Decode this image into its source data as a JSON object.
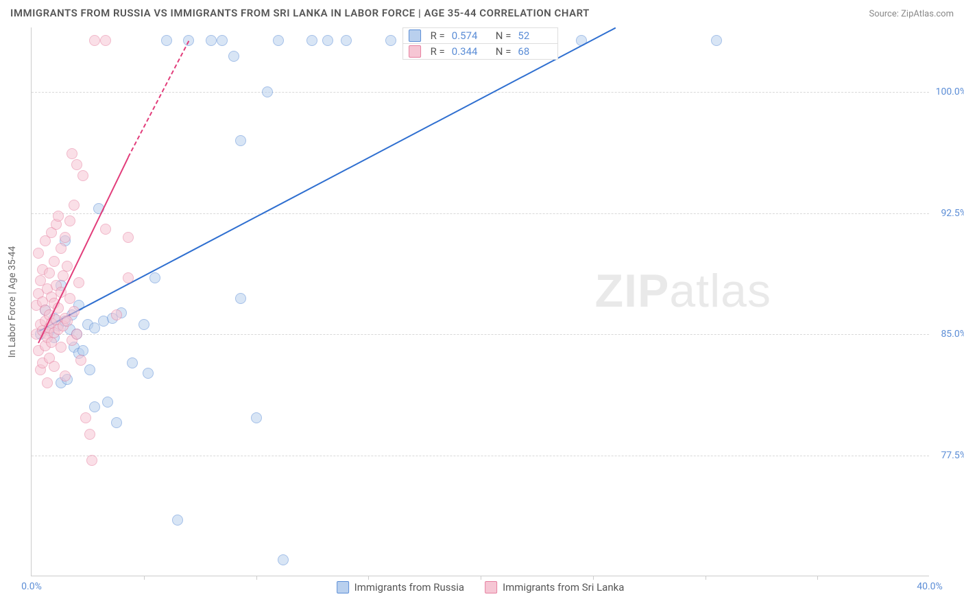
{
  "header": {
    "title": "IMMIGRANTS FROM RUSSIA VS IMMIGRANTS FROM SRI LANKA IN LABOR FORCE | AGE 35-44 CORRELATION CHART",
    "source": "Source: ZipAtlas.com"
  },
  "chart": {
    "type": "scatter",
    "ylabel": "In Labor Force | Age 35-44",
    "xlim": [
      0,
      40
    ],
    "ylim": [
      70,
      104
    ],
    "xticks": [
      {
        "v": 0,
        "label": "0.0%"
      },
      {
        "v": 40,
        "label": "40.0%"
      }
    ],
    "xtick_marks": [
      5,
      10,
      15,
      20,
      25,
      30,
      35
    ],
    "yticks": [
      {
        "v": 77.5,
        "label": "77.5%"
      },
      {
        "v": 85.0,
        "label": "85.0%"
      },
      {
        "v": 92.5,
        "label": "92.5%"
      },
      {
        "v": 100.0,
        "label": "100.0%"
      }
    ],
    "grid_color": "#d8d8d8",
    "background_color": "#ffffff",
    "axis_color": "#cccccc",
    "tick_label_color": "#5b8dd6",
    "ylabel_color": "#666666",
    "marker_size": 16,
    "marker_opacity": 0.55,
    "series": [
      {
        "name": "Immigrants from Russia",
        "fill_color": "#b9d0ee",
        "stroke_color": "#5b8dd6",
        "trend_color": "#2f6fd0",
        "r": 0.574,
        "n": 52,
        "trend": {
          "x1": 0.3,
          "y1": 85.2,
          "x2": 26.0,
          "y2": 104.0
        },
        "points": [
          {
            "x": 0.4,
            "y": 85.0
          },
          {
            "x": 0.6,
            "y": 86.5
          },
          {
            "x": 0.8,
            "y": 85.2
          },
          {
            "x": 1.0,
            "y": 84.8
          },
          {
            "x": 1.0,
            "y": 86.0
          },
          {
            "x": 1.2,
            "y": 85.5
          },
          {
            "x": 1.3,
            "y": 88.0
          },
          {
            "x": 1.3,
            "y": 82.0
          },
          {
            "x": 1.5,
            "y": 85.8
          },
          {
            "x": 1.5,
            "y": 90.8
          },
          {
            "x": 1.7,
            "y": 85.3
          },
          {
            "x": 1.6,
            "y": 82.2
          },
          {
            "x": 1.8,
            "y": 86.2
          },
          {
            "x": 1.9,
            "y": 84.2
          },
          {
            "x": 2.0,
            "y": 85.0
          },
          {
            "x": 2.1,
            "y": 83.8
          },
          {
            "x": 2.1,
            "y": 86.8
          },
          {
            "x": 2.3,
            "y": 84.0
          },
          {
            "x": 2.5,
            "y": 85.6
          },
          {
            "x": 2.6,
            "y": 82.8
          },
          {
            "x": 2.8,
            "y": 85.4
          },
          {
            "x": 2.8,
            "y": 80.5
          },
          {
            "x": 3.0,
            "y": 92.8
          },
          {
            "x": 3.2,
            "y": 85.8
          },
          {
            "x": 3.4,
            "y": 80.8
          },
          {
            "x": 3.6,
            "y": 86.0
          },
          {
            "x": 3.8,
            "y": 79.5
          },
          {
            "x": 4.0,
            "y": 86.3
          },
          {
            "x": 4.5,
            "y": 83.2
          },
          {
            "x": 5.0,
            "y": 85.6
          },
          {
            "x": 5.2,
            "y": 82.6
          },
          {
            "x": 5.5,
            "y": 88.5
          },
          {
            "x": 6.0,
            "y": 103.2
          },
          {
            "x": 6.5,
            "y": 73.5
          },
          {
            "x": 7.0,
            "y": 103.2
          },
          {
            "x": 8.0,
            "y": 103.2
          },
          {
            "x": 8.5,
            "y": 103.2
          },
          {
            "x": 9.0,
            "y": 102.2
          },
          {
            "x": 9.3,
            "y": 97.0
          },
          {
            "x": 9.3,
            "y": 87.2
          },
          {
            "x": 10.0,
            "y": 79.8
          },
          {
            "x": 10.5,
            "y": 100.0
          },
          {
            "x": 11.0,
            "y": 103.2
          },
          {
            "x": 11.2,
            "y": 71.0
          },
          {
            "x": 12.5,
            "y": 103.2
          },
          {
            "x": 13.2,
            "y": 103.2
          },
          {
            "x": 14.0,
            "y": 103.2
          },
          {
            "x": 16.0,
            "y": 103.2
          },
          {
            "x": 17.8,
            "y": 103.2
          },
          {
            "x": 19.0,
            "y": 103.2
          },
          {
            "x": 24.5,
            "y": 103.2
          },
          {
            "x": 30.5,
            "y": 103.2
          }
        ]
      },
      {
        "name": "Immigrants from Sri Lanka",
        "fill_color": "#f6c6d4",
        "stroke_color": "#e67f9f",
        "trend_color": "#e23c7a",
        "r": 0.344,
        "n": 68,
        "trend": {
          "x1": 0.3,
          "y1": 84.5,
          "x2": 4.3,
          "y2": 96.0
        },
        "trend_dash": {
          "x1": 4.3,
          "y1": 96.0,
          "x2": 7.0,
          "y2": 103.2
        },
        "points": [
          {
            "x": 0.2,
            "y": 85.0
          },
          {
            "x": 0.2,
            "y": 86.8
          },
          {
            "x": 0.3,
            "y": 84.0
          },
          {
            "x": 0.3,
            "y": 87.5
          },
          {
            "x": 0.3,
            "y": 90.0
          },
          {
            "x": 0.4,
            "y": 85.6
          },
          {
            "x": 0.4,
            "y": 88.3
          },
          {
            "x": 0.4,
            "y": 82.8
          },
          {
            "x": 0.5,
            "y": 85.2
          },
          {
            "x": 0.5,
            "y": 87.0
          },
          {
            "x": 0.5,
            "y": 89.0
          },
          {
            "x": 0.5,
            "y": 83.2
          },
          {
            "x": 0.6,
            "y": 85.8
          },
          {
            "x": 0.6,
            "y": 86.5
          },
          {
            "x": 0.6,
            "y": 84.3
          },
          {
            "x": 0.6,
            "y": 90.8
          },
          {
            "x": 0.7,
            "y": 85.0
          },
          {
            "x": 0.7,
            "y": 87.8
          },
          {
            "x": 0.7,
            "y": 84.8
          },
          {
            "x": 0.7,
            "y": 82.0
          },
          {
            "x": 0.8,
            "y": 85.4
          },
          {
            "x": 0.8,
            "y": 86.2
          },
          {
            "x": 0.8,
            "y": 88.8
          },
          {
            "x": 0.8,
            "y": 83.5
          },
          {
            "x": 0.9,
            "y": 85.7
          },
          {
            "x": 0.9,
            "y": 87.3
          },
          {
            "x": 0.9,
            "y": 91.3
          },
          {
            "x": 0.9,
            "y": 84.5
          },
          {
            "x": 1.0,
            "y": 85.1
          },
          {
            "x": 1.0,
            "y": 86.9
          },
          {
            "x": 1.0,
            "y": 89.5
          },
          {
            "x": 1.0,
            "y": 83.0
          },
          {
            "x": 1.1,
            "y": 85.9
          },
          {
            "x": 1.1,
            "y": 88.0
          },
          {
            "x": 1.1,
            "y": 91.8
          },
          {
            "x": 1.2,
            "y": 85.3
          },
          {
            "x": 1.2,
            "y": 86.6
          },
          {
            "x": 1.2,
            "y": 92.3
          },
          {
            "x": 1.3,
            "y": 84.2
          },
          {
            "x": 1.3,
            "y": 87.6
          },
          {
            "x": 1.3,
            "y": 90.3
          },
          {
            "x": 1.4,
            "y": 85.5
          },
          {
            "x": 1.4,
            "y": 88.6
          },
          {
            "x": 1.5,
            "y": 82.4
          },
          {
            "x": 1.5,
            "y": 86.0
          },
          {
            "x": 1.5,
            "y": 91.0
          },
          {
            "x": 1.6,
            "y": 85.8
          },
          {
            "x": 1.6,
            "y": 89.2
          },
          {
            "x": 1.7,
            "y": 87.2
          },
          {
            "x": 1.7,
            "y": 92.0
          },
          {
            "x": 1.8,
            "y": 84.6
          },
          {
            "x": 1.8,
            "y": 96.2
          },
          {
            "x": 1.9,
            "y": 86.4
          },
          {
            "x": 1.9,
            "y": 93.0
          },
          {
            "x": 2.0,
            "y": 85.0
          },
          {
            "x": 2.0,
            "y": 95.5
          },
          {
            "x": 2.1,
            "y": 88.2
          },
          {
            "x": 2.2,
            "y": 83.4
          },
          {
            "x": 2.3,
            "y": 94.8
          },
          {
            "x": 2.4,
            "y": 79.8
          },
          {
            "x": 2.6,
            "y": 78.8
          },
          {
            "x": 2.7,
            "y": 77.2
          },
          {
            "x": 2.8,
            "y": 103.2
          },
          {
            "x": 3.3,
            "y": 103.2
          },
          {
            "x": 3.3,
            "y": 91.5
          },
          {
            "x": 3.8,
            "y": 86.2
          },
          {
            "x": 4.3,
            "y": 91.0
          },
          {
            "x": 4.3,
            "y": 88.5
          }
        ]
      }
    ],
    "legend_top_stats": [
      {
        "series_idx": 0,
        "r_label": "R =",
        "n_label": "N ="
      },
      {
        "series_idx": 1,
        "r_label": "R =",
        "n_label": "N ="
      }
    ],
    "watermark": {
      "bold": "ZIP",
      "rest": "atlas",
      "color": "#e9e9e9"
    }
  }
}
